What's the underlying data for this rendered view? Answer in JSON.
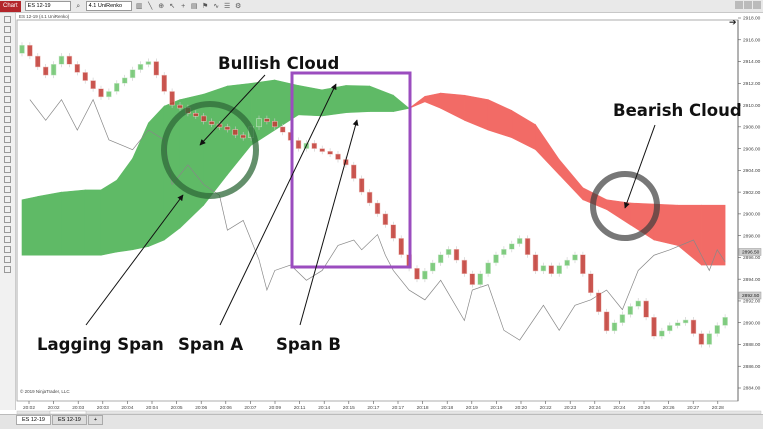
{
  "toolbar": {
    "chart_label": "Chart",
    "instrument": "ES 12-19",
    "bar_type": "4.1 UniRenko",
    "icons": [
      "search-icon",
      "bar-type-icon",
      "draw-line-icon",
      "zoom-icon",
      "pointer-icon",
      "crosshair-icon",
      "properties-icon",
      "strategy-icon",
      "indicator-icon",
      "template-icon",
      "settings-icon"
    ]
  },
  "chart_title": "ES 12-19 (4.1 UniRenko)",
  "copyright": "© 2019 NinjaTrader, LLC",
  "tabs": [
    {
      "label": "ES 12-19",
      "active": true
    },
    {
      "label": "ES 12-19",
      "active": false
    },
    {
      "label": "+",
      "active": false
    }
  ],
  "colors": {
    "bull_cloud": "#5fba66",
    "bear_cloud": "#f26b66",
    "up_bar": "#6cc46c",
    "down_bar": "#c23a33",
    "lagging_span": "#888888",
    "highlight_box": "#9b4dbf"
  },
  "annotations": {
    "bullish_cloud": "Bullish Cloud",
    "bearish_cloud": "Bearish Cloud",
    "lagging_span": "Lagging Span",
    "span_a": "Span A",
    "span_b": "Span B"
  },
  "chart_data": {
    "type": "candlestick",
    "title": "",
    "yaxis": {
      "ylim": [
        2884.5,
        2919
      ],
      "ticks": [
        "2918.00",
        "2916.00",
        "2914.00",
        "2912.00",
        "2910.00",
        "2908.00",
        "2906.00",
        "2904.00",
        "2902.00",
        "2900.00",
        "2898.00",
        "2896.00",
        "2894.00",
        "2892.00",
        "2890.00",
        "2888.00",
        "2886.00",
        "2884.00"
      ],
      "markers": [
        "2896.50",
        "2892.50"
      ]
    },
    "xaxis": {
      "ticks": [
        "20:02",
        "20:02",
        "20:03",
        "20:03",
        "20:04",
        "20:04",
        "20:05",
        "20:06",
        "20:06",
        "20:07",
        "20:09",
        "20:11",
        "20:14",
        "20:15",
        "20:17",
        "20:17",
        "20:18",
        "20:18",
        "20:19",
        "20:19",
        "20:20",
        "20:22",
        "20:23",
        "20:24",
        "20:24",
        "20:26",
        "20:26",
        "20:27",
        "20:28"
      ]
    },
    "grid": false,
    "closes": [
      2915.5,
      2914.5,
      2913.5,
      2912.75,
      2913.75,
      2914.5,
      2913.75,
      2913,
      2912.25,
      2911.5,
      2910.75,
      2911.25,
      2912,
      2912.5,
      2913.25,
      2913.75,
      2914,
      2912.75,
      2911.25,
      2910,
      2909.75,
      2909.25,
      2909,
      2908.5,
      2908.25,
      2908,
      2907.75,
      2907.25,
      2907,
      2908,
      2908.75,
      2908.5,
      2908,
      2907.5,
      2906.75,
      2906,
      2906.5,
      2906,
      2905.75,
      2905.5,
      2905,
      2904.5,
      2903.25,
      2902,
      2901,
      2900,
      2899,
      2897.75,
      2896.25,
      2895,
      2894,
      2894.75,
      2895.5,
      2896.25,
      2896.75,
      2895.75,
      2894.5,
      2893.5,
      2894.5,
      2895.5,
      2896.25,
      2896.75,
      2897.25,
      2897.75,
      2896.25,
      2894.75,
      2895.25,
      2894.5,
      2895.25,
      2895.75,
      2896.25,
      2894.5,
      2892.75,
      2891,
      2889.25,
      2890,
      2890.75,
      2891.5,
      2892,
      2890.5,
      2888.75,
      2889.25,
      2889.75,
      2890,
      2890.25,
      2889,
      2888,
      2889,
      2889.75,
      2890.5
    ],
    "cloud": {
      "bar_index": [
        0,
        2,
        5,
        8,
        10,
        12,
        14,
        16,
        18,
        20,
        23,
        26,
        29,
        32,
        35,
        38,
        41,
        44,
        47,
        49,
        51,
        53,
        56,
        59,
        62,
        65,
        68,
        71,
        74,
        77,
        80,
        83,
        86,
        89
      ],
      "span_a": [
        2901.3,
        2901.6,
        2902,
        2902.2,
        2902.2,
        2903.1,
        2905.1,
        2908.35,
        2909.9,
        2910.5,
        2911,
        2911.75,
        2912,
        2912.3,
        2911.8,
        2911.4,
        2911.8,
        2911.75,
        2910.9,
        2909.7,
        2910.3,
        2909.7,
        2908.6,
        2907.7,
        2907,
        2905.9,
        2903.6,
        2901.3,
        2900.4,
        2899,
        2897.6,
        2897.1,
        2895.3,
        2895.3
      ],
      "span_b": [
        2896.2,
        2896.2,
        2896.2,
        2896.2,
        2896.2,
        2896.5,
        2896.7,
        2897,
        2897.6,
        2898.7,
        2900.8,
        2903.6,
        2906.3,
        2907.7,
        2909.1,
        2909,
        2909.3,
        2909.4,
        2909.4,
        2909.7,
        2910.8,
        2911.1,
        2910.9,
        2910.5,
        2909.5,
        2908.2,
        2905,
        2902.4,
        2901.3,
        2901,
        2900.9,
        2900.8,
        2900.8,
        2900.8
      ]
    },
    "lagging_span": {
      "bar_index": [
        1,
        3,
        5,
        7,
        9,
        11,
        14,
        16,
        18,
        19,
        21,
        23,
        25,
        26,
        28,
        30,
        31,
        32,
        34,
        36,
        38,
        40,
        42,
        43,
        45,
        46,
        47,
        49,
        51,
        53,
        56,
        57,
        59,
        61,
        63,
        66,
        68,
        70,
        72,
        74,
        76,
        78,
        80,
        82,
        85,
        86,
        87,
        88,
        89
      ],
      "values": [
        2910.5,
        2908.6,
        2910.5,
        2907.7,
        2910.5,
        2906.8,
        2905.9,
        2907.7,
        2906.8,
        2902.7,
        2904.5,
        2902.7,
        2901.7,
        2898.5,
        2899.4,
        2895.8,
        2893,
        2894.8,
        2895.3,
        2893.9,
        2894.8,
        2897.1,
        2897.6,
        2896.7,
        2898.1,
        2896.2,
        2894.8,
        2893,
        2892.1,
        2893.9,
        2890.2,
        2893,
        2893.5,
        2889.3,
        2888.4,
        2891.6,
        2889.3,
        2891.6,
        2892.1,
        2893,
        2891.2,
        2894.8,
        2896.2,
        2896.7,
        2897.6,
        2896.2,
        2894.8,
        2896.7,
        2895.6
      ]
    }
  }
}
